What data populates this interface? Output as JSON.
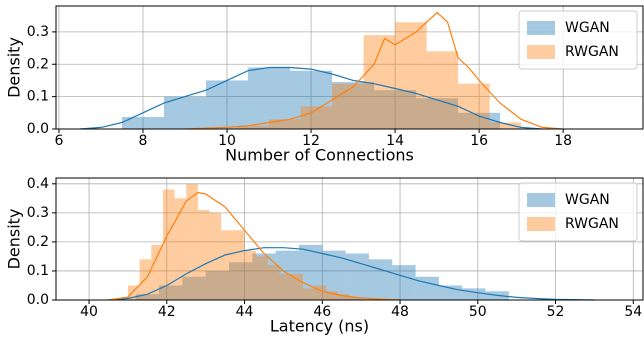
{
  "chart_data": [
    {
      "type": "histogram",
      "xlabel": "Number of Connections",
      "ylabel": "Density",
      "xlim": [
        5.93,
        19.9
      ],
      "ylim": [
        0,
        0.38
      ],
      "xticks": [
        6,
        8,
        10,
        12,
        14,
        16,
        18
      ],
      "yticks": [
        {
          "value": 0,
          "label": "0.0"
        },
        0.1,
        0.2,
        0.3
      ],
      "grid": true,
      "legend": "upper right",
      "series": [
        {
          "name": "WGAN",
          "color": "#1f77b4",
          "bins": [
            7.5,
            8.5,
            9.5,
            10.5,
            11.5,
            12.5,
            13.5,
            14.5,
            15.5,
            16.5
          ],
          "values": [
            0.037,
            0.1,
            0.15,
            0.19,
            0.18,
            0.145,
            0.12,
            0.095,
            0.05
          ],
          "kde_x": [
            6.5,
            7,
            7.5,
            8,
            8.5,
            9,
            9.5,
            10,
            10.5,
            11,
            11.5,
            12,
            12.5,
            13,
            13.5,
            14,
            14.5,
            15,
            15.5,
            16,
            16.5,
            17,
            17.5
          ],
          "kde_y": [
            0,
            0.005,
            0.02,
            0.05,
            0.08,
            0.1,
            0.12,
            0.15,
            0.18,
            0.19,
            0.19,
            0.185,
            0.17,
            0.15,
            0.14,
            0.125,
            0.11,
            0.09,
            0.07,
            0.04,
            0.02,
            0.005,
            0
          ]
        },
        {
          "name": "RWGAN",
          "color": "#ff7f0e",
          "bins": [
            10.25,
            11,
            11.75,
            12.5,
            13.25,
            14,
            14.75,
            15.5,
            16.25,
            17
          ],
          "values": [
            0.01,
            0.03,
            0.07,
            0.14,
            0.29,
            0.33,
            0.24,
            0.14,
            0.02
          ],
          "kde_x": [
            9,
            10,
            10.5,
            11,
            11.5,
            12,
            12.5,
            13,
            13.5,
            13.75,
            14,
            14.25,
            14.5,
            14.75,
            15,
            15.25,
            15.5,
            15.75,
            16,
            16.5,
            17,
            17.5,
            18
          ],
          "kde_y": [
            0,
            0.005,
            0.01,
            0.02,
            0.03,
            0.05,
            0.09,
            0.13,
            0.2,
            0.28,
            0.26,
            0.28,
            0.3,
            0.33,
            0.36,
            0.33,
            0.22,
            0.19,
            0.15,
            0.08,
            0.03,
            0.005,
            0
          ]
        }
      ]
    },
    {
      "type": "histogram",
      "xlabel": "Latency (ns)",
      "ylabel": "Density",
      "xlim": [
        39.15,
        54.25
      ],
      "ylim": [
        0,
        0.42
      ],
      "xticks": [
        40,
        42,
        44,
        46,
        48,
        50,
        52,
        54
      ],
      "yticks": [
        {
          "value": 0,
          "label": "0.0"
        },
        0.1,
        0.2,
        0.3,
        0.4
      ],
      "grid": true,
      "legend": "upper right",
      "series": [
        {
          "name": "WGAN",
          "color": "#1f77b4",
          "bins": [
            41.2,
            41.8,
            42.4,
            43,
            43.6,
            44.2,
            44.8,
            45.4,
            46,
            46.6,
            47.2,
            47.8,
            48.4,
            49,
            49.6,
            50.2,
            50.8
          ],
          "values": [
            0.02,
            0.05,
            0.08,
            0.1,
            0.13,
            0.16,
            0.17,
            0.19,
            0.17,
            0.16,
            0.14,
            0.12,
            0.08,
            0.05,
            0.04,
            0.03
          ],
          "kde_x": [
            40.5,
            41,
            41.5,
            42,
            42.5,
            43,
            43.5,
            44,
            44.5,
            45,
            45.5,
            46,
            46.5,
            47,
            47.5,
            48,
            48.5,
            49,
            49.5,
            50,
            50.5,
            51,
            51.5,
            52,
            53
          ],
          "kde_y": [
            0,
            0.005,
            0.02,
            0.05,
            0.09,
            0.125,
            0.155,
            0.17,
            0.18,
            0.18,
            0.175,
            0.16,
            0.145,
            0.125,
            0.105,
            0.085,
            0.065,
            0.05,
            0.035,
            0.025,
            0.016,
            0.009,
            0.005,
            0.002,
            0
          ]
        },
        {
          "name": "RWGAN",
          "color": "#ff7f0e",
          "bins": [
            41,
            41.3,
            41.6,
            41.9,
            42.2,
            42.5,
            42.8,
            43.1,
            43.4,
            43.7,
            44,
            44.3,
            44.6,
            44.9,
            45.2,
            45.5,
            45.8,
            46.1,
            46.4,
            46.7,
            47
          ],
          "values": [
            0.05,
            0.14,
            0.19,
            0.38,
            0.35,
            0.4,
            0.31,
            0.3,
            0.24,
            0.24,
            0.17,
            0.15,
            0.12,
            0.09,
            0.09,
            0.04,
            0.05,
            0.03,
            0.02,
            0.01
          ],
          "kde_x": [
            40.5,
            41,
            41.5,
            42,
            42.5,
            42.8,
            43,
            43.5,
            44,
            44.5,
            45,
            45.5,
            46,
            46.5,
            47,
            47.5,
            48
          ],
          "kde_y": [
            0,
            0.01,
            0.08,
            0.22,
            0.34,
            0.37,
            0.365,
            0.32,
            0.24,
            0.16,
            0.1,
            0.06,
            0.03,
            0.015,
            0.007,
            0.003,
            0
          ]
        }
      ]
    }
  ]
}
